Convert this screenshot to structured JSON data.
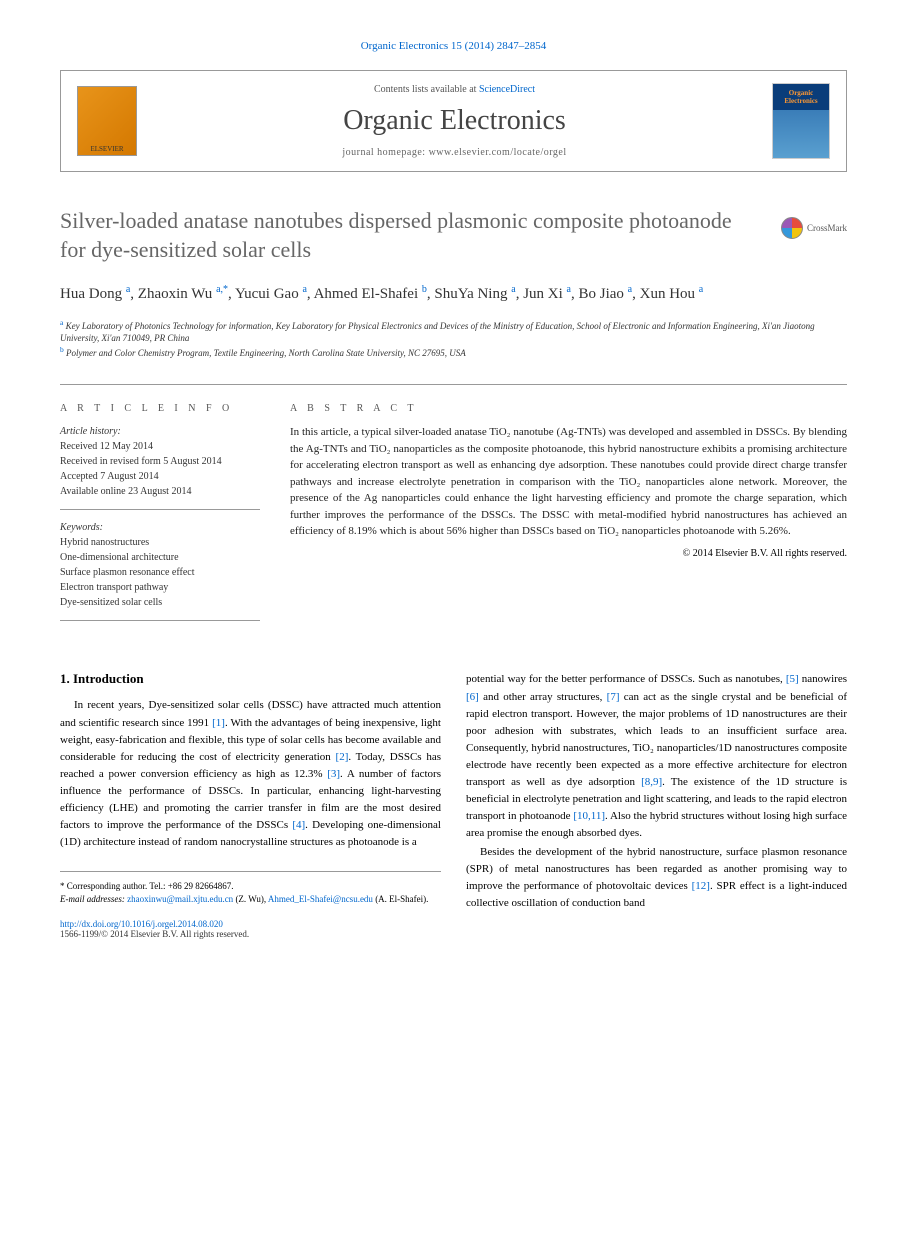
{
  "citation": "Organic Electronics 15 (2014) 2847–2854",
  "header": {
    "contents_prefix": "Contents lists available at ",
    "contents_link": "ScienceDirect",
    "journal_name": "Organic Electronics",
    "homepage_prefix": "journal homepage: ",
    "homepage_url": "www.elsevier.com/locate/orgel",
    "publisher_logo": "ELSEVIER",
    "cover_text1": "Organic",
    "cover_text2": "Electronics"
  },
  "crossmark_label": "CrossMark",
  "title": "Silver-loaded anatase nanotubes dispersed plasmonic composite photoanode for dye-sensitized solar cells",
  "authors_html": "Hua Dong <sup>a</sup>, Zhaoxin Wu <sup>a,*</sup>, Yucui Gao <sup>a</sup>, Ahmed El-Shafei <sup>b</sup>, ShuYa Ning <sup>a</sup>, Jun Xi <sup>a</sup>, Bo Jiao <sup>a</sup>, Xun Hou <sup>a</sup>",
  "affiliations": {
    "a": "Key Laboratory of Photonics Technology for information, Key Laboratory for Physical Electronics and Devices of the Ministry of Education, School of Electronic and Information Engineering, Xi'an Jiaotong University, Xi'an 710049, PR China",
    "b": "Polymer and Color Chemistry Program, Textile Engineering, North Carolina State University, NC 27695, USA"
  },
  "article_info_label": "A R T I C L E   I N F O",
  "abstract_label": "A B S T R A C T",
  "history": {
    "heading": "Article history:",
    "received": "Received 12 May 2014",
    "revised": "Received in revised form 5 August 2014",
    "accepted": "Accepted 7 August 2014",
    "online": "Available online 23 August 2014"
  },
  "keywords": {
    "heading": "Keywords:",
    "items": [
      "Hybrid nanostructures",
      "One-dimensional architecture",
      "Surface plasmon resonance effect",
      "Electron transport pathway",
      "Dye-sensitized solar cells"
    ]
  },
  "abstract_text": "In this article, a typical silver-loaded anatase TiO₂ nanotube (Ag-TNTs) was developed and assembled in DSSCs. By blending the Ag-TNTs and TiO₂ nanoparticles as the composite photoanode, this hybrid nanostructure exhibits a promising architecture for accelerating electron transport as well as enhancing dye adsorption. These nanotubes could provide direct charge transfer pathways and increase electrolyte penetration in comparison with the TiO₂ nanoparticles alone network. Moreover, the presence of the Ag nanoparticles could enhance the light harvesting efficiency and promote the charge separation, which further improves the performance of the DSSCs. The DSSC with metal-modified hybrid nanostructures has achieved an efficiency of 8.19% which is about 56% higher than DSSCs based on TiO₂ nanoparticles photoanode with 5.26%.",
  "copyright": "© 2014 Elsevier B.V. All rights reserved.",
  "intro_heading": "1. Introduction",
  "intro_col1": "In recent years, Dye-sensitized solar cells (DSSC) have attracted much attention and scientific research since 1991 <a href='#'>[1]</a>. With the advantages of being inexpensive, light weight, easy-fabrication and flexible, this type of solar cells has become available and considerable for reducing the cost of electricity generation <a href='#'>[2]</a>. Today, DSSCs has reached a power conversion efficiency as high as 12.3% <a href='#'>[3]</a>. A number of factors influence the performance of DSSCs. In particular, enhancing light-harvesting efficiency (LHE) and promoting the carrier transfer in film are the most desired factors to improve the performance of the DSSCs <a href='#'>[4]</a>. Developing one-dimensional (1D) architecture instead of random nanocrystalline structures as photoanode is a",
  "intro_col2_p1": "potential way for the better performance of DSSCs. Such as nanotubes, <a href='#'>[5]</a> nanowires <a href='#'>[6]</a> and other array structures, <a href='#'>[7]</a> can act as the single crystal and be beneficial of rapid electron transport. However, the major problems of 1D nanostructures are their poor adhesion with substrates, which leads to an insufficient surface area. Consequently, hybrid nanostructures, TiO₂ nanoparticles/1D nanostructures composite electrode have recently been expected as a more effective architecture for electron transport as well as dye adsorption <a href='#'>[8,9]</a>. The existence of the 1D structure is beneficial in electrolyte penetration and light scattering, and leads to the rapid electron transport in photoanode <a href='#'>[10,11]</a>. Also the hybrid structures without losing high surface area promise the enough absorbed dyes.",
  "intro_col2_p2": "Besides the development of the hybrid nanostructure, surface plasmon resonance (SPR) of metal nanostructures has been regarded as another promising way to improve the performance of photovoltaic devices <a href='#'>[12]</a>. SPR effect is a light-induced collective oscillation of conduction band",
  "footer": {
    "corresponding": "* Corresponding author. Tel.: +86 29 82664867.",
    "email_label": "E-mail addresses:",
    "email1": "zhaoxinwu@mail.xjtu.edu.cn",
    "email1_name": "(Z. Wu),",
    "email2": "Ahmed_El-Shafei@ncsu.edu",
    "email2_name": "(A. El-Shafei)."
  },
  "doi": "http://dx.doi.org/10.1016/j.orgel.2014.08.020",
  "issn": "1566-1199/© 2014 Elsevier B.V. All rights reserved."
}
